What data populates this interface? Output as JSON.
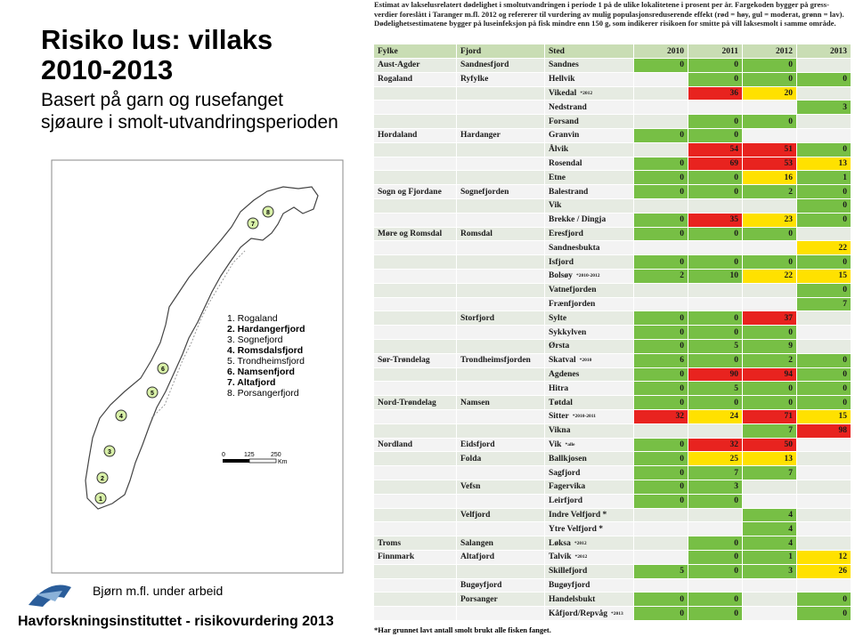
{
  "header": {
    "title_lines": [
      "Risiko lus:  villaks",
      "2010-2013"
    ],
    "subtitle_lines": [
      "Basert på garn og rusefanget",
      "sjøaure i smolt-utvandringsperioden"
    ]
  },
  "map": {
    "legend": [
      {
        "label": "1. Rogaland",
        "bold": false
      },
      {
        "label": "2. Hardangerfjord",
        "bold": true
      },
      {
        "label": "3. Sognefjord",
        "bold": false
      },
      {
        "label": "4. Romsdalsfjord",
        "bold": true
      },
      {
        "label": "5. Trondheimsfjord",
        "bold": false
      },
      {
        "label": "6. Namsenfjord",
        "bold": true
      },
      {
        "label": "7. Altafjord",
        "bold": true
      },
      {
        "label": "8. Porsangerfjord",
        "bold": false
      }
    ],
    "markers": [
      "1",
      "2",
      "3",
      "4",
      "5",
      "6",
      "7",
      "8"
    ],
    "scale": [
      "0",
      "125",
      "250",
      "Km"
    ]
  },
  "credit": "Bjørn m.fl. under arbeid",
  "footer": "Havforskningsinstituttet - risikovurdering 2013",
  "table": {
    "caption": "Estimat av lakselusrelatert dødelighet i smoltutvandringen i periode 1 på de ulike lokalitetene i prosent per år. Fargekoden bygger på gress-verdier foreslått i Taranger m.fl. 2012 og refererer til vurdering av mulig populasjonsreduserende effekt (rød = høy, gul = moderat, grønn = lav). Dødelighetsestimatene bygger på luseinfeksjon på fisk mindre enn 150 g, som indikerer risikoen for smitte på vill laksesmolt i samme område.",
    "columns": [
      "Fylke",
      "Fjord",
      "Sted",
      "2010",
      "2011",
      "2012",
      "2013"
    ],
    "colors": {
      "g": "#77bf45",
      "r": "#e8231f",
      "y": "#ffe100"
    },
    "rows": [
      {
        "fylke": "Aust-Agder",
        "fjord": "Sandnesfjord",
        "sted": "Sandnes",
        "values": [
          0,
          0,
          0,
          null
        ],
        "levels": [
          "g",
          "g",
          "g",
          null
        ]
      },
      {
        "fylke": "Rogaland",
        "fjord": "Ryfylke",
        "sted": "Hellvik",
        "values": [
          null,
          0,
          0,
          0
        ],
        "levels": [
          null,
          "g",
          "g",
          "g"
        ]
      },
      {
        "sted": "Vikedal",
        "note": "*2012",
        "values": [
          null,
          36,
          20,
          null
        ],
        "levels": [
          null,
          "r",
          "y",
          null
        ]
      },
      {
        "sted": "Nedstrand",
        "values": [
          null,
          null,
          null,
          3
        ],
        "levels": [
          null,
          null,
          null,
          "g"
        ]
      },
      {
        "sted": "Forsand",
        "values": [
          null,
          0,
          0,
          null
        ],
        "levels": [
          null,
          "g",
          "g",
          null
        ]
      },
      {
        "fylke": "Hordaland",
        "fjord": "Hardanger",
        "sted": "Granvin",
        "values": [
          0,
          0,
          null,
          null
        ],
        "levels": [
          "g",
          "g",
          null,
          null
        ]
      },
      {
        "sted": "Ålvik",
        "values": [
          null,
          54,
          51,
          0
        ],
        "levels": [
          null,
          "r",
          "r",
          "g"
        ]
      },
      {
        "sted": "Rosendal",
        "values": [
          0,
          69,
          53,
          13
        ],
        "levels": [
          "g",
          "r",
          "r",
          "y"
        ]
      },
      {
        "sted": "Etne",
        "values": [
          0,
          0,
          16,
          1
        ],
        "levels": [
          "g",
          "g",
          "y",
          "g"
        ]
      },
      {
        "fylke": "Sogn og Fjordane",
        "fjord": "Sognefjorden",
        "sted": "Balestrand",
        "values": [
          0,
          0,
          2,
          0
        ],
        "levels": [
          "g",
          "g",
          "g",
          "g"
        ]
      },
      {
        "sted": "Vik",
        "values": [
          null,
          null,
          null,
          0
        ],
        "levels": [
          null,
          null,
          null,
          "g"
        ]
      },
      {
        "sted": "Brekke / Dingja",
        "values": [
          0,
          35,
          23,
          0
        ],
        "levels": [
          "g",
          "r",
          "y",
          "g"
        ]
      },
      {
        "fylke": "Møre og Romsdal",
        "fjord": "Romsdal",
        "sted": "Eresfjord",
        "values": [
          0,
          0,
          0,
          null
        ],
        "levels": [
          "g",
          "g",
          "g",
          null
        ]
      },
      {
        "sted": "Sandnesbukta",
        "values": [
          null,
          null,
          null,
          22
        ],
        "levels": [
          null,
          null,
          null,
          "y"
        ]
      },
      {
        "sted": "Isfjord",
        "values": [
          0,
          0,
          0,
          0
        ],
        "levels": [
          "g",
          "g",
          "g",
          "g"
        ]
      },
      {
        "sted": "Bolsøy",
        "note": "*2010-2012",
        "values": [
          2,
          10,
          22,
          15
        ],
        "levels": [
          "g",
          "g",
          "y",
          "y"
        ]
      },
      {
        "sted": "Vatnefjorden",
        "values": [
          null,
          null,
          null,
          0
        ],
        "levels": [
          null,
          null,
          null,
          "g"
        ]
      },
      {
        "sted": "Frænfjorden",
        "values": [
          null,
          null,
          null,
          7
        ],
        "levels": [
          null,
          null,
          null,
          "g"
        ]
      },
      {
        "fjord": "Storfjord",
        "sted": "Sylte",
        "values": [
          0,
          0,
          37,
          null
        ],
        "levels": [
          "g",
          "g",
          "r",
          null
        ]
      },
      {
        "sted": "Sykkylven",
        "values": [
          0,
          0,
          0,
          null
        ],
        "levels": [
          "g",
          "g",
          "g",
          null
        ]
      },
      {
        "sted": "Ørsta",
        "values": [
          0,
          5,
          9,
          null
        ],
        "levels": [
          "g",
          "g",
          "g",
          null
        ]
      },
      {
        "fylke": "Sør-Trøndelag",
        "fjord": "Trondheimsfjorden",
        "sted": "Skatval",
        "note": "*2010",
        "values": [
          6,
          0,
          2,
          0
        ],
        "levels": [
          "g",
          "g",
          "g",
          "g"
        ]
      },
      {
        "sted": "Agdenes",
        "values": [
          0,
          90,
          94,
          0
        ],
        "levels": [
          "g",
          "r",
          "r",
          "g"
        ]
      },
      {
        "sted": "Hitra",
        "values": [
          0,
          5,
          0,
          0
        ],
        "levels": [
          "g",
          "g",
          "g",
          "g"
        ]
      },
      {
        "fylke": "Nord-Trøndelag",
        "fjord": "Namsen",
        "sted": "Tøtdal",
        "values": [
          0,
          0,
          0,
          0
        ],
        "levels": [
          "g",
          "g",
          "g",
          "g"
        ]
      },
      {
        "sted": "Sitter",
        "note": "*2010-2011",
        "values": [
          32,
          24,
          71,
          15
        ],
        "levels": [
          "r",
          "y",
          "r",
          "y"
        ]
      },
      {
        "sted": "Vikna",
        "values": [
          null,
          null,
          7,
          98
        ],
        "levels": [
          null,
          null,
          "g",
          "r"
        ]
      },
      {
        "fylke": "Nordland",
        "fjord": "Eidsfjord",
        "sted": "Vik",
        "note": "*alle",
        "values": [
          0,
          32,
          50,
          null
        ],
        "levels": [
          "g",
          "r",
          "r",
          null
        ]
      },
      {
        "fjord": "Folda",
        "sted": "Ballkjosen",
        "values": [
          0,
          25,
          13,
          null
        ],
        "levels": [
          "g",
          "y",
          "y",
          null
        ]
      },
      {
        "sted": "Sagfjord",
        "values": [
          0,
          7,
          7,
          null
        ],
        "levels": [
          "g",
          "g",
          "g",
          null
        ]
      },
      {
        "fjord": "Vefsn",
        "sted": "Fagervika",
        "values": [
          0,
          3,
          null,
          null
        ],
        "levels": [
          "g",
          "g",
          null,
          null
        ]
      },
      {
        "sted": "Leirfjord",
        "values": [
          0,
          0,
          null,
          null
        ],
        "levels": [
          "g",
          "g",
          null,
          null
        ]
      },
      {
        "fjord": "Velfjord",
        "sted": "Indre Velfjord *",
        "values": [
          null,
          null,
          4,
          null
        ],
        "levels": [
          null,
          null,
          "g",
          null
        ]
      },
      {
        "sted": "Ytre Velfjord *",
        "values": [
          null,
          null,
          4,
          null
        ],
        "levels": [
          null,
          null,
          "g",
          null
        ]
      },
      {
        "fylke": "Troms",
        "fjord": "Salangen",
        "sted": "Løksa",
        "note": "*2012",
        "values": [
          null,
          0,
          4,
          null
        ],
        "levels": [
          null,
          "g",
          "g",
          null
        ]
      },
      {
        "fylke": "Finnmark",
        "fjord": "Altafjord",
        "sted": "Talvik",
        "note": "*2012",
        "values": [
          null,
          0,
          1,
          12
        ],
        "levels": [
          null,
          "g",
          "g",
          "y"
        ]
      },
      {
        "sted": "Skillefjord",
        "values": [
          5,
          0,
          3,
          26
        ],
        "levels": [
          "g",
          "g",
          "g",
          "y"
        ]
      },
      {
        "fjord": "Bugøyfjord",
        "sted": "Bugøyfjord",
        "values": [
          null,
          null,
          null,
          null
        ],
        "levels": [
          null,
          null,
          null,
          null
        ]
      },
      {
        "fjord": "Porsanger",
        "sted": "Handelsbukt",
        "values": [
          0,
          0,
          null,
          0
        ],
        "levels": [
          "g",
          "g",
          null,
          "g"
        ]
      },
      {
        "sted": "Kåfjord/Repvåg",
        "note": "*2013",
        "values": [
          0,
          0,
          null,
          0
        ],
        "levels": [
          "g",
          "g",
          null,
          "g"
        ]
      }
    ],
    "footnote": "*Har grunnet lavt antall smolt brukt alle fisken fanget."
  }
}
